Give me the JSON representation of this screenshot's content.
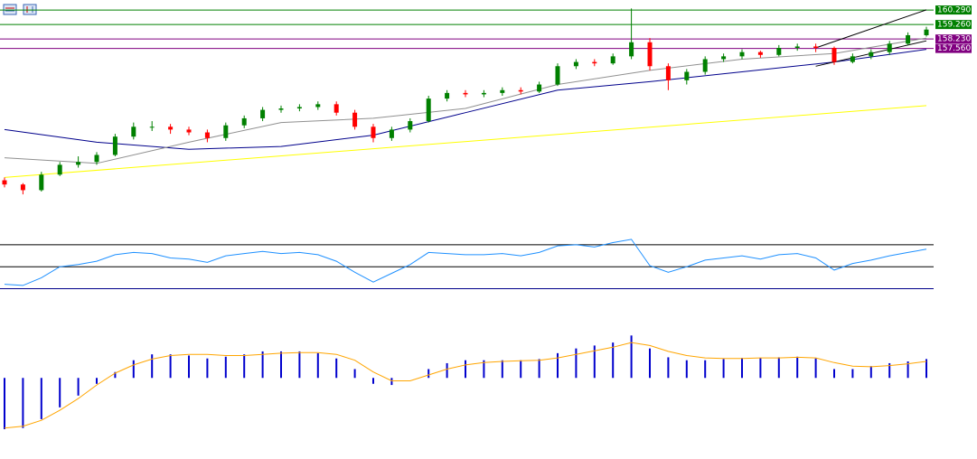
{
  "chart_data": {
    "type": "candlestick",
    "ylim": [
      144,
      161
    ],
    "up_color": "#008000",
    "down_color": "#ff0000",
    "candles": [
      [
        148.2,
        148.4,
        147.7,
        147.9
      ],
      [
        147.9,
        148.0,
        147.2,
        147.5
      ],
      [
        147.5,
        148.8,
        147.4,
        148.6
      ],
      [
        148.6,
        149.5,
        148.5,
        149.3
      ],
      [
        149.3,
        149.9,
        149.1,
        149.5
      ],
      [
        149.5,
        150.2,
        149.3,
        150.0
      ],
      [
        150.0,
        151.5,
        149.9,
        151.3
      ],
      [
        151.3,
        152.3,
        151.1,
        152.0
      ],
      [
        152.0,
        152.4,
        151.7,
        152.0
      ],
      [
        152.0,
        152.2,
        151.5,
        151.8
      ],
      [
        151.8,
        152.0,
        151.4,
        151.6
      ],
      [
        151.6,
        151.8,
        150.9,
        151.2
      ],
      [
        151.2,
        152.3,
        151.0,
        152.1
      ],
      [
        152.1,
        152.8,
        151.9,
        152.6
      ],
      [
        152.6,
        153.4,
        152.4,
        153.2
      ],
      [
        153.2,
        153.5,
        153.0,
        153.3
      ],
      [
        153.3,
        153.6,
        153.1,
        153.4
      ],
      [
        153.4,
        153.8,
        153.2,
        153.6
      ],
      [
        153.6,
        153.8,
        152.8,
        153.0
      ],
      [
        153.0,
        153.2,
        151.8,
        152.0
      ],
      [
        152.0,
        152.2,
        150.9,
        151.2
      ],
      [
        151.2,
        152.0,
        151.0,
        151.8
      ],
      [
        151.8,
        152.6,
        151.6,
        152.4
      ],
      [
        152.4,
        154.2,
        152.3,
        154.0
      ],
      [
        154.0,
        154.6,
        153.8,
        154.4
      ],
      [
        154.4,
        154.6,
        154.1,
        154.3
      ],
      [
        154.3,
        154.6,
        154.1,
        154.4
      ],
      [
        154.4,
        154.8,
        154.2,
        154.6
      ],
      [
        154.6,
        154.8,
        154.3,
        154.5
      ],
      [
        154.5,
        155.2,
        154.4,
        155.0
      ],
      [
        155.0,
        156.5,
        154.9,
        156.3
      ],
      [
        156.3,
        156.8,
        156.1,
        156.6
      ],
      [
        156.6,
        156.8,
        156.3,
        156.5
      ],
      [
        156.5,
        157.2,
        156.4,
        157.0
      ],
      [
        157.0,
        160.4,
        156.8,
        158.0
      ],
      [
        158.0,
        158.3,
        156.0,
        156.3
      ],
      [
        156.3,
        156.5,
        154.6,
        155.3
      ],
      [
        155.3,
        156.1,
        155.0,
        155.9
      ],
      [
        155.9,
        157.0,
        155.7,
        156.8
      ],
      [
        156.8,
        157.2,
        156.6,
        157.0
      ],
      [
        157.0,
        157.5,
        156.8,
        157.3
      ],
      [
        157.3,
        157.4,
        156.9,
        157.1
      ],
      [
        157.1,
        157.8,
        157.0,
        157.6
      ],
      [
        157.6,
        157.9,
        157.4,
        157.7
      ],
      [
        157.7,
        157.9,
        157.3,
        157.6
      ],
      [
        157.6,
        157.7,
        156.4,
        156.6
      ],
      [
        156.6,
        157.2,
        156.5,
        157.0
      ],
      [
        157.0,
        157.5,
        156.8,
        157.3
      ],
      [
        157.3,
        158.1,
        157.1,
        157.9
      ],
      [
        157.9,
        158.7,
        157.8,
        158.5
      ],
      [
        158.5,
        159.1,
        158.4,
        158.9
      ]
    ],
    "moving_averages": [
      {
        "color": "#ffff00",
        "x": [
          0,
          50
        ],
        "values": [
          148.4,
          153.5
        ]
      },
      {
        "color": "#00008b",
        "x": [
          0,
          5,
          10,
          15,
          20,
          25,
          30,
          35,
          40,
          45,
          50
        ],
        "values": [
          151.8,
          150.9,
          150.4,
          150.6,
          151.4,
          153.0,
          154.6,
          155.2,
          155.9,
          156.6,
          157.5
        ]
      },
      {
        "color": "#909090",
        "x": [
          0,
          5,
          10,
          15,
          20,
          25,
          30,
          35,
          40,
          45,
          50
        ],
        "values": [
          149.8,
          149.4,
          150.9,
          152.3,
          152.6,
          153.3,
          155.0,
          156.0,
          156.8,
          157.2,
          158.3
        ]
      }
    ],
    "channel": [
      {
        "color": "#000000",
        "x": [
          44,
          50
        ],
        "values": [
          157.6,
          160.3
        ]
      },
      {
        "color": "#000000",
        "x": [
          44,
          50
        ],
        "values": [
          156.3,
          158.1
        ]
      }
    ],
    "levels": [
      {
        "value": 160.29,
        "label": "160.290",
        "color": "#008000"
      },
      {
        "value": 159.26,
        "label": "159.260",
        "color": "#008000"
      },
      {
        "value": 158.23,
        "label": "158.230",
        "color": "#800080"
      },
      {
        "value": 157.56,
        "label": "157.560",
        "color": "#800080"
      }
    ],
    "rsi": {
      "ylim": [
        23,
        79
      ],
      "levels": [
        70,
        50,
        30
      ],
      "color": "#1e90ff",
      "values": [
        34,
        33,
        40,
        50,
        52,
        55,
        61,
        63,
        62,
        58,
        57,
        54,
        60,
        62,
        64,
        62,
        63,
        61,
        55,
        45,
        36,
        44,
        52,
        63,
        62,
        61,
        61,
        62,
        60,
        63,
        69,
        70,
        68,
        72,
        75,
        51,
        45,
        50,
        56,
        58,
        60,
        57,
        61,
        62,
        58,
        47,
        53,
        56,
        60,
        63,
        66
      ]
    },
    "macd": {
      "ylim": [
        -1.1,
        1.2
      ],
      "histogram_color": "#0000cd",
      "signal_color": "#ffa500",
      "histogram": [
        -0.87,
        -0.85,
        -0.7,
        -0.5,
        -0.3,
        -0.1,
        0.1,
        0.3,
        0.4,
        0.4,
        0.38,
        0.33,
        0.36,
        0.4,
        0.45,
        0.45,
        0.45,
        0.42,
        0.33,
        0.15,
        -0.1,
        -0.12,
        0.0,
        0.15,
        0.25,
        0.3,
        0.3,
        0.3,
        0.3,
        0.32,
        0.42,
        0.5,
        0.55,
        0.6,
        0.72,
        0.5,
        0.35,
        0.3,
        0.3,
        0.32,
        0.34,
        0.34,
        0.35,
        0.36,
        0.33,
        0.15,
        0.15,
        0.2,
        0.25,
        0.28,
        0.32
      ],
      "signal": [
        -0.85,
        -0.82,
        -0.72,
        -0.55,
        -0.35,
        -0.12,
        0.08,
        0.22,
        0.32,
        0.38,
        0.4,
        0.4,
        0.38,
        0.38,
        0.4,
        0.42,
        0.43,
        0.43,
        0.4,
        0.3,
        0.1,
        -0.05,
        -0.05,
        0.05,
        0.15,
        0.22,
        0.26,
        0.28,
        0.29,
        0.3,
        0.34,
        0.4,
        0.46,
        0.52,
        0.6,
        0.55,
        0.45,
        0.38,
        0.34,
        0.33,
        0.33,
        0.34,
        0.34,
        0.35,
        0.34,
        0.26,
        0.2,
        0.19,
        0.21,
        0.24,
        0.28
      ]
    }
  }
}
